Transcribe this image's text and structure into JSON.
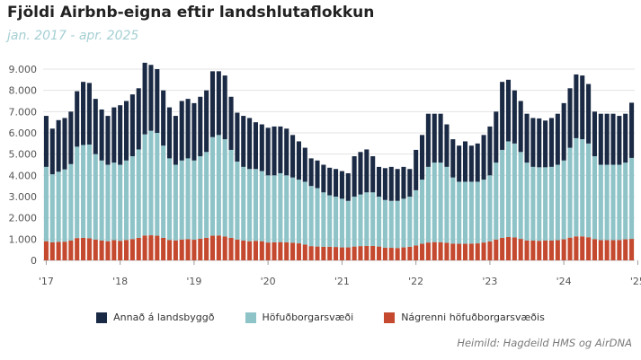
{
  "title": "Fjöldi Airbnb-eigna eftir landshlutaflokkun",
  "subtitle": "jan. 2017 - apr. 2025",
  "source": "Heimild: Hagdeild HMS og AirDNA",
  "colors": {
    "Annað á landsbyggð": "#1b2a44",
    "Höfuðborgarsvæði": "#8ec3c8",
    "Nágrenni höfuðborgarsvæðis": "#c4492e"
  },
  "chart_data": {
    "type": "bar",
    "stacked": true,
    "x_start": "jan. 2017",
    "x_end": "apr. 2025",
    "x_tick_labels": [
      "'17",
      "'18",
      "'19",
      "'20",
      "'21",
      "'22",
      "'23",
      "'24",
      "'25"
    ],
    "ylim": [
      0,
      9000
    ],
    "y_tick_labels": [
      "0",
      "1.000",
      "2.000",
      "3.000",
      "4.000",
      "5.000",
      "6.000",
      "7.000",
      "8.000",
      "9.000"
    ],
    "grid": true,
    "legend_position": "bottom",
    "series": [
      {
        "name": "Nágrenni höfuðborgarsvæðis",
        "values": [
          900,
          850,
          870,
          880,
          930,
          1050,
          1060,
          1040,
          980,
          930,
          900,
          950,
          920,
          960,
          1000,
          1060,
          1170,
          1180,
          1160,
          1060,
          960,
          940,
          980,
          1000,
          970,
          1020,
          1060,
          1160,
          1170,
          1120,
          1060,
          980,
          930,
          900,
          920,
          900,
          840,
          850,
          860,
          850,
          830,
          800,
          740,
          670,
          650,
          640,
          640,
          630,
          610,
          610,
          650,
          670,
          680,
          680,
          650,
          600,
          590,
          580,
          610,
          640,
          700,
          780,
          840,
          860,
          850,
          830,
          790,
          780,
          780,
          790,
          800,
          840,
          890,
          980,
          1060,
          1100,
          1080,
          1010,
          940,
          930,
          920,
          930,
          930,
          950,
          990,
          1070,
          1130,
          1130,
          1090,
          1000,
          950,
          950,
          950,
          960,
          990,
          1010
        ]
      },
      {
        "name": "Höfuðborgarsvæði",
        "values": [
          3500,
          3200,
          3300,
          3400,
          3600,
          4300,
          4370,
          4410,
          4020,
          3770,
          3600,
          3650,
          3580,
          3740,
          3900,
          4160,
          4760,
          4920,
          4840,
          4340,
          3840,
          3560,
          3720,
          3800,
          3730,
          3880,
          4040,
          4640,
          4730,
          4580,
          4140,
          3670,
          3470,
          3400,
          3380,
          3300,
          3160,
          3150,
          3240,
          3150,
          3070,
          3000,
          2960,
          2830,
          2750,
          2560,
          2420,
          2370,
          2290,
          2190,
          2350,
          2430,
          2520,
          2520,
          2350,
          2240,
          2210,
          2220,
          2290,
          2360,
          2600,
          3020,
          3560,
          3740,
          3750,
          3570,
          3110,
          2920,
          2920,
          2910,
          2900,
          2960,
          3110,
          3620,
          4140,
          4500,
          4420,
          4090,
          3660,
          3470,
          3460,
          3450,
          3470,
          3550,
          3710,
          4230,
          4620,
          4570,
          4410,
          3900,
          3550,
          3550,
          3550,
          3540,
          3610,
          3810
        ]
      },
      {
        "name": "Annað á landsbyggð",
        "values": [
          2400,
          2150,
          2430,
          2420,
          2470,
          2610,
          2970,
          2900,
          2600,
          2400,
          2300,
          2600,
          2800,
          2800,
          2910,
          2880,
          3370,
          3100,
          3000,
          2600,
          2400,
          2300,
          2800,
          2800,
          2700,
          2800,
          2900,
          3100,
          3000,
          3000,
          2500,
          2300,
          2400,
          2400,
          2200,
          2200,
          2240,
          2300,
          2200,
          2200,
          2000,
          1800,
          1600,
          1300,
          1300,
          1300,
          1300,
          1300,
          1300,
          1300,
          1900,
          2000,
          2020,
          1700,
          1400,
          1500,
          1600,
          1500,
          1500,
          1300,
          1900,
          2100,
          2500,
          2300,
          2300,
          2000,
          1800,
          1700,
          1900,
          1700,
          1800,
          2100,
          2300,
          2400,
          3200,
          2900,
          2500,
          2400,
          2300,
          2300,
          2300,
          2200,
          2300,
          2400,
          2700,
          2800,
          3000,
          3000,
          2800,
          2100,
          2400,
          2400,
          2400,
          2300,
          2300,
          2600
        ]
      }
    ]
  }
}
